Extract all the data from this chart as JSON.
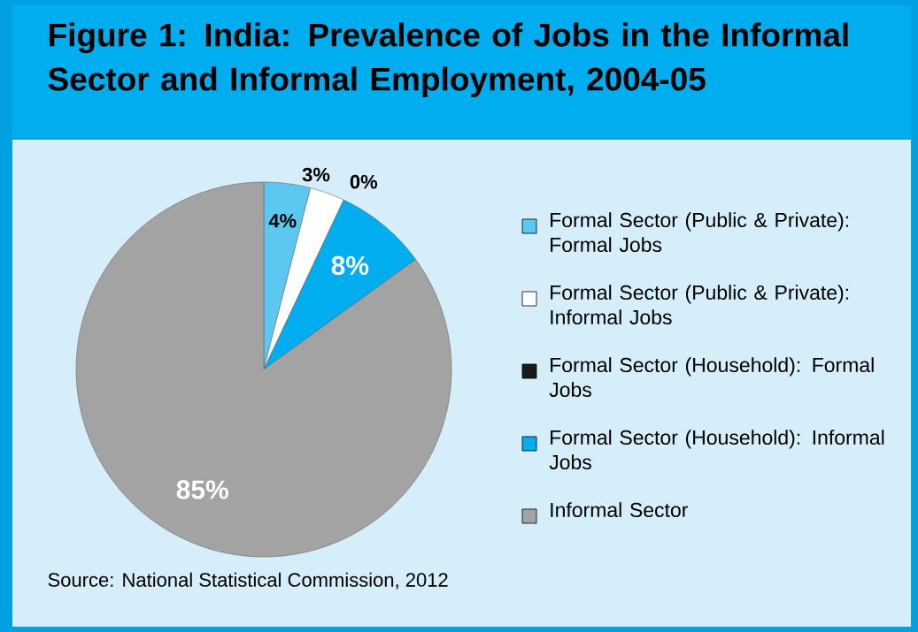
{
  "chart_data": {
    "type": "pie",
    "title": "Figure 1:  India: Prevalence of Jobs in the Informal Sector and Informal Employment, 2004-05",
    "categories": [
      "Formal Sector (Public & Private): Formal Jobs",
      "Formal Sector (Public & Private): Informal Jobs",
      "Formal Sector (Household): Formal Jobs",
      "Formal Sector (Household): Informal Jobs",
      "Informal Sector"
    ],
    "values": [
      4,
      3,
      0,
      8,
      85
    ],
    "colors": [
      "#5cc8f2",
      "#ffffff",
      "#1a1a1a",
      "#00aeef",
      "#a3a3a3"
    ],
    "value_labels": [
      "4%",
      "3%",
      "0%",
      "8%",
      "85%"
    ],
    "legend": "right",
    "annotations": [
      "Source: National Statistical Commission, 2012"
    ]
  }
}
